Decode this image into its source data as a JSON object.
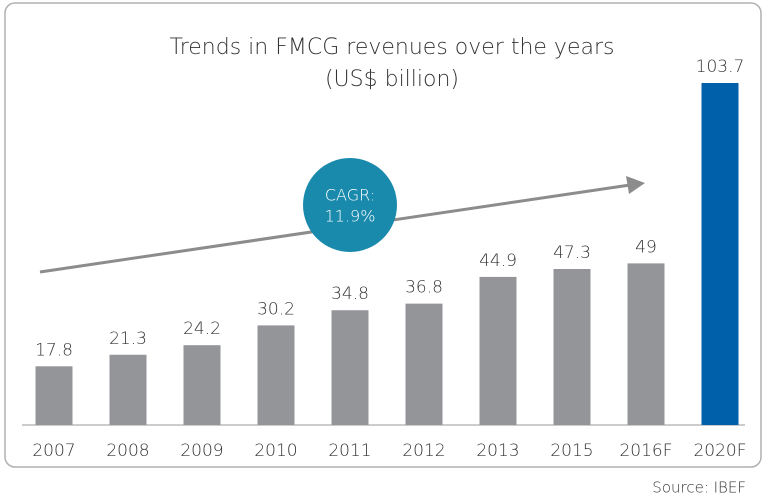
{
  "chart_data": {
    "type": "bar",
    "title": "Trends in FMCG revenues over the years",
    "subtitle": "(US$ billion)",
    "categories": [
      "2007",
      "2008",
      "2009",
      "2010",
      "2011",
      "2012",
      "2013",
      "2015",
      "2016F",
      "2020F"
    ],
    "values": [
      17.8,
      21.3,
      24.2,
      30.2,
      34.8,
      36.8,
      44.9,
      47.3,
      49,
      103.7
    ],
    "colors": [
      "#939598",
      "#939598",
      "#939598",
      "#939598",
      "#939598",
      "#939598",
      "#939598",
      "#939598",
      "#939598",
      "#0060a9"
    ],
    "ylim": [
      0,
      103.7
    ],
    "annotation": [
      "CAGR:",
      "11.9%"
    ],
    "source": "Source: IBEF"
  }
}
